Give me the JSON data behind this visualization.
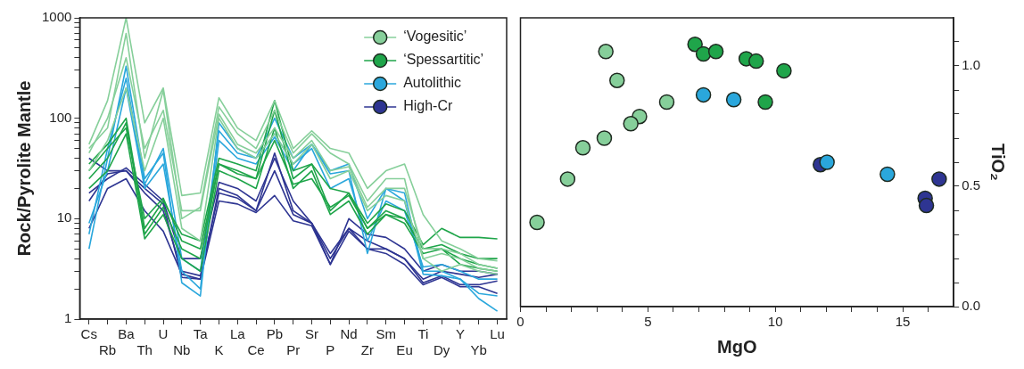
{
  "chart_data": [
    {
      "type": "line",
      "ylabel": "Rock/Pyrolite Mantle",
      "log": "y",
      "legend": "top right",
      "marker": "none",
      "line_style": "solid",
      "categories": [
        "Cs",
        "Rb",
        "Ba",
        "Th",
        "U",
        "Nb",
        "Ta",
        "K",
        "La",
        "Ce",
        "Pb",
        "Pr",
        "Sr",
        "P",
        "Nd",
        "Zr",
        "Sm",
        "Eu",
        "Ti",
        "Dy",
        "Y",
        "Yb",
        "Lu"
      ],
      "ylim": [
        1,
        1000
      ],
      "yticks": [
        1,
        {
          "value": 2,
          "label": null
        },
        {
          "value": 3,
          "label": null
        },
        {
          "value": 4,
          "label": null
        },
        {
          "value": 5,
          "label": null
        },
        {
          "value": 6,
          "label": null
        },
        {
          "value": 7,
          "label": null
        },
        {
          "value": 8,
          "label": null
        },
        {
          "value": 9,
          "label": null
        },
        10,
        {
          "value": 20,
          "label": null
        },
        {
          "value": 30,
          "label": null
        },
        {
          "value": 40,
          "label": null
        },
        {
          "value": 50,
          "label": null
        },
        {
          "value": 60,
          "label": null
        },
        {
          "value": 70,
          "label": null
        },
        {
          "value": 80,
          "label": null
        },
        {
          "value": 90,
          "label": null
        },
        100,
        {
          "value": 200,
          "label": null
        },
        {
          "value": 300,
          "label": null
        },
        {
          "value": 400,
          "label": null
        },
        {
          "value": 500,
          "label": null
        },
        {
          "value": 600,
          "label": null
        },
        {
          "value": 700,
          "label": null
        },
        {
          "value": 800,
          "label": null
        },
        {
          "value": 900,
          "label": null
        },
        1000
      ],
      "series": [
        {
          "name": "‘Vogesitic’",
          "color": "#86cf9a",
          "values": [
            55,
            150,
            1000,
            90,
            200,
            17,
            18,
            160,
            80,
            60,
            150,
            50,
            75,
            50,
            45,
            20,
            30,
            35,
            11,
            6,
            5,
            4,
            3.8
          ]
        },
        {
          "color": "#86cf9a",
          "values": [
            45,
            100,
            400,
            50,
            120,
            12,
            12,
            110,
            55,
            45,
            80,
            40,
            60,
            30,
            33,
            13,
            20,
            20,
            5,
            5,
            4.5,
            3.5,
            3.2
          ]
        },
        {
          "color": "#86cf9a",
          "values": [
            30,
            60,
            200,
            30,
            100,
            8,
            6,
            100,
            50,
            40,
            70,
            35,
            55,
            25,
            30,
            12,
            17,
            15,
            4,
            4.5,
            4,
            3.2,
            3
          ]
        },
        {
          "color": "#86cf9a",
          "values": [
            50,
            80,
            700,
            40,
            190,
            10,
            13,
            130,
            70,
            50,
            120,
            45,
            70,
            45,
            35,
            15,
            25,
            25,
            4,
            3,
            3.5,
            3,
            2.8
          ]
        },
        {
          "name": "‘Spessartitic’",
          "color": "#1fa54a",
          "values": [
            35,
            55,
            100,
            8,
            15,
            7,
            6,
            40,
            35,
            30,
            150,
            30,
            35,
            20,
            18,
            9,
            14,
            12,
            5.5,
            8,
            6.5,
            6.5,
            6.3
          ]
        },
        {
          "color": "#1fa54a",
          "values": [
            25,
            40,
            90,
            7,
            13,
            5,
            4,
            35,
            30,
            25,
            120,
            25,
            35,
            12,
            18,
            8,
            12,
            10,
            5,
            5.5,
            4.5,
            4,
            4
          ]
        },
        {
          "color": "#1fa54a",
          "values": [
            20,
            30,
            70,
            6.3,
            11,
            4,
            3,
            30,
            25,
            20,
            80,
            20,
            30,
            11,
            15,
            7,
            11,
            9,
            4.5,
            5,
            4,
            3.5,
            3.2
          ]
        },
        {
          "color": "#1fa54a",
          "values": [
            30,
            50,
            80,
            10,
            16,
            6,
            5,
            35,
            28,
            25,
            60,
            22,
            25,
            13,
            17,
            8,
            11,
            10,
            5,
            5,
            3.5,
            3.2,
            3
          ]
        },
        {
          "name": "Autolithic",
          "color": "#2aa7dc",
          "values": [
            5,
            40,
            330,
            25,
            45,
            2.3,
            1.7,
            90,
            50,
            40,
            100,
            40,
            55,
            30,
            35,
            10,
            20,
            18,
            3,
            3,
            2.5,
            1.6,
            1.2
          ]
        },
        {
          "color": "#2aa7dc",
          "values": [
            9,
            30,
            200,
            20,
            35,
            3,
            2,
            60,
            40,
            35,
            65,
            30,
            55,
            28,
            30,
            4.5,
            20,
            15,
            2.8,
            2.7,
            2.5,
            1.8,
            1.7
          ]
        },
        {
          "color": "#2aa7dc",
          "values": [
            7,
            50,
            250,
            22,
            50,
            4,
            3,
            75,
            45,
            40,
            70,
            35,
            50,
            20,
            25,
            6,
            15,
            12,
            3.3,
            3.5,
            3,
            2.5,
            2.5
          ]
        },
        {
          "name": "High-Cr",
          "color": "#2e3592",
          "values": [
            40,
            30,
            30,
            20,
            14,
            2.6,
            2.5,
            20,
            17,
            12,
            45,
            12,
            9,
            3.5,
            10,
            7,
            6.5,
            5,
            3,
            3.5,
            3,
            3,
            2.8
          ]
        },
        {
          "color": "#2e3592",
          "values": [
            18,
            25,
            32,
            22,
            15,
            4,
            4,
            23,
            20,
            15,
            40,
            15,
            9,
            4,
            8,
            5,
            5,
            4,
            2.3,
            2.7,
            2.2,
            2.2,
            2.4
          ]
        },
        {
          "color": "#2e3592",
          "values": [
            8,
            20,
            25,
            12,
            7.5,
            2.8,
            2.5,
            15,
            14,
            11.5,
            17,
            9.5,
            8.5,
            3.5,
            7.5,
            5,
            4.5,
            3.5,
            2.2,
            2.6,
            2.1,
            2.1,
            1.8
          ]
        },
        {
          "color": "#2e3592",
          "values": [
            15,
            28,
            30,
            18,
            12,
            3,
            2.7,
            18,
            16,
            12,
            30,
            11,
            9,
            4.5,
            8,
            6,
            5,
            4,
            2.5,
            3,
            2.8,
            2.6,
            2.8
          ]
        }
      ]
    },
    {
      "type": "scatter",
      "xlabel": "MgO",
      "y2label": "TiO₂",
      "marker": "circle",
      "xlim": [
        0,
        17
      ],
      "xticks": [
        0,
        {
          "value": 1,
          "label": null
        },
        {
          "value": 2,
          "label": null
        },
        {
          "value": 3,
          "label": null
        },
        {
          "value": 4,
          "label": null
        },
        5,
        {
          "value": 6,
          "label": null
        },
        {
          "value": 7,
          "label": null
        },
        {
          "value": 8,
          "label": null
        },
        {
          "value": 9,
          "label": null
        },
        10,
        {
          "value": 11,
          "label": null
        },
        {
          "value": 12,
          "label": null
        },
        {
          "value": 13,
          "label": null
        },
        {
          "value": 14,
          "label": null
        },
        15,
        {
          "value": 16,
          "label": null
        }
      ],
      "y2lim": [
        0,
        1.2
      ],
      "y2ticks": [
        {
          "value": 0,
          "label": "0.0"
        },
        {
          "value": 0.1,
          "label": null
        },
        {
          "value": 0.2,
          "label": null
        },
        {
          "value": 0.3,
          "label": null
        },
        {
          "value": 0.4,
          "label": null
        },
        {
          "value": 0.5,
          "label": "0.5"
        },
        {
          "value": 0.6,
          "label": null
        },
        {
          "value": 0.7,
          "label": null
        },
        {
          "value": 0.8,
          "label": null
        },
        {
          "value": 0.9,
          "label": null
        },
        {
          "value": 1,
          "label": "1.0"
        },
        {
          "value": 1.1,
          "label": null
        }
      ],
      "series": [
        {
          "color": "#86cf9a",
          "axis": "y2",
          "x": [
            3.35,
            3.79,
            5.74,
            4.67,
            4.33,
            3.29,
            2.45,
            1.85,
            0.65
          ],
          "values": [
            1.06,
            0.94,
            0.85,
            0.79,
            0.76,
            0.7,
            0.66,
            0.53,
            0.35
          ]
        },
        {
          "color": "#1fa54a",
          "axis": "y2",
          "x": [
            6.85,
            7.18,
            7.67,
            8.86,
            9.25,
            10.34,
            9.61
          ],
          "values": [
            1.09,
            1.05,
            1.06,
            1.03,
            1.02,
            0.98,
            0.85
          ]
        },
        {
          "color": "#2aa7dc",
          "axis": "y2",
          "x": [
            7.18,
            8.37,
            12.03,
            14.4
          ],
          "values": [
            0.88,
            0.86,
            0.6,
            0.55
          ]
        },
        {
          "color": "#2e3592",
          "axis": "y2",
          "x": [
            11.77,
            15.88,
            15.93,
            16.43
          ],
          "values": [
            0.59,
            0.45,
            0.42,
            0.53
          ]
        }
      ]
    }
  ]
}
